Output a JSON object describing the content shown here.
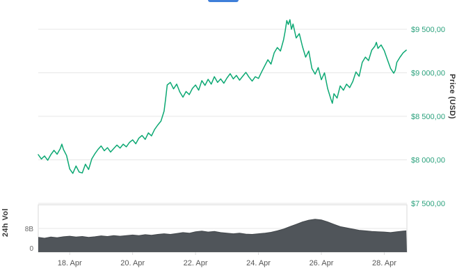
{
  "colors": {
    "price_line": "#0ca873",
    "price_tick_label": "#2aa17c",
    "volume_fill": "#50555a",
    "volume_edge": "#43484c",
    "grid_line": "#e7e7e7",
    "panel_border": "#d9d9d9",
    "axis_text": "#555555",
    "volume_tick_text": "#666666",
    "axis_title": "#333333",
    "cropped_blue": "#3f7fd9"
  },
  "chart_data": [
    {
      "type": "line",
      "name": "price",
      "title": "",
      "xlabel": "",
      "ylabel": "Price (USD)",
      "legend": "none",
      "grid": true,
      "xlim": [
        17.0,
        28.72
      ],
      "ylim": [
        7500,
        9756
      ],
      "x_ticks": [
        {
          "t": 18,
          "label": "18. Apr"
        },
        {
          "t": 20,
          "label": "20. Apr"
        },
        {
          "t": 22,
          "label": "22. Apr"
        },
        {
          "t": 24,
          "label": "24. Apr"
        },
        {
          "t": 26,
          "label": "26. Apr"
        },
        {
          "t": 28,
          "label": "28. Apr"
        }
      ],
      "y_ticks": [
        {
          "value": 9500,
          "label": "$9 500,00"
        },
        {
          "value": 9000,
          "label": "$9 000,00"
        },
        {
          "value": 8500,
          "label": "$8 500,00"
        },
        {
          "value": 8000,
          "label": "$8 000,00"
        },
        {
          "value": 7500,
          "label": "$7 500,00"
        }
      ],
      "series": [
        {
          "name": "Price (USD)",
          "points": [
            [
              17.0,
              8060
            ],
            [
              17.1,
              8010
            ],
            [
              17.2,
              8045
            ],
            [
              17.3,
              7995
            ],
            [
              17.4,
              8060
            ],
            [
              17.5,
              8110
            ],
            [
              17.6,
              8065
            ],
            [
              17.7,
              8130
            ],
            [
              17.75,
              8180
            ],
            [
              17.8,
              8120
            ],
            [
              17.9,
              8050
            ],
            [
              18.0,
              7895
            ],
            [
              18.1,
              7845
            ],
            [
              18.2,
              7930
            ],
            [
              18.3,
              7860
            ],
            [
              18.4,
              7850
            ],
            [
              18.5,
              7950
            ],
            [
              18.6,
              7890
            ],
            [
              18.7,
              8010
            ],
            [
              18.8,
              8070
            ],
            [
              18.9,
              8120
            ],
            [
              19.0,
              8160
            ],
            [
              19.1,
              8105
            ],
            [
              19.2,
              8140
            ],
            [
              19.3,
              8090
            ],
            [
              19.4,
              8130
            ],
            [
              19.5,
              8170
            ],
            [
              19.6,
              8135
            ],
            [
              19.7,
              8180
            ],
            [
              19.8,
              8150
            ],
            [
              19.9,
              8200
            ],
            [
              20.0,
              8230
            ],
            [
              20.1,
              8185
            ],
            [
              20.2,
              8250
            ],
            [
              20.3,
              8280
            ],
            [
              20.4,
              8235
            ],
            [
              20.5,
              8310
            ],
            [
              20.6,
              8275
            ],
            [
              20.7,
              8350
            ],
            [
              20.8,
              8400
            ],
            [
              20.9,
              8445
            ],
            [
              21.0,
              8560
            ],
            [
              21.05,
              8700
            ],
            [
              21.1,
              8860
            ],
            [
              21.2,
              8890
            ],
            [
              21.3,
              8815
            ],
            [
              21.4,
              8870
            ],
            [
              21.5,
              8780
            ],
            [
              21.6,
              8720
            ],
            [
              21.7,
              8785
            ],
            [
              21.8,
              8750
            ],
            [
              21.9,
              8820
            ],
            [
              22.0,
              8860
            ],
            [
              22.1,
              8800
            ],
            [
              22.2,
              8910
            ],
            [
              22.3,
              8855
            ],
            [
              22.4,
              8925
            ],
            [
              22.5,
              8870
            ],
            [
              22.6,
              8955
            ],
            [
              22.7,
              8890
            ],
            [
              22.8,
              8930
            ],
            [
              22.9,
              8880
            ],
            [
              23.0,
              8940
            ],
            [
              23.1,
              8990
            ],
            [
              23.2,
              8930
            ],
            [
              23.3,
              8970
            ],
            [
              23.4,
              8915
            ],
            [
              23.5,
              8960
            ],
            [
              23.6,
              9005
            ],
            [
              23.7,
              8950
            ],
            [
              23.8,
              8905
            ],
            [
              23.9,
              8955
            ],
            [
              24.0,
              8935
            ],
            [
              24.1,
              9010
            ],
            [
              24.2,
              9080
            ],
            [
              24.3,
              9150
            ],
            [
              24.4,
              9100
            ],
            [
              24.5,
              9230
            ],
            [
              24.6,
              9290
            ],
            [
              24.7,
              9250
            ],
            [
              24.8,
              9380
            ],
            [
              24.85,
              9480
            ],
            [
              24.9,
              9600
            ],
            [
              24.95,
              9555
            ],
            [
              25.0,
              9610
            ],
            [
              25.05,
              9500
            ],
            [
              25.1,
              9560
            ],
            [
              25.2,
              9400
            ],
            [
              25.3,
              9450
            ],
            [
              25.4,
              9300
            ],
            [
              25.5,
              9180
            ],
            [
              25.6,
              9250
            ],
            [
              25.7,
              9050
            ],
            [
              25.8,
              8985
            ],
            [
              25.9,
              9060
            ],
            [
              26.0,
              8920
            ],
            [
              26.1,
              9000
            ],
            [
              26.2,
              8820
            ],
            [
              26.3,
              8700
            ],
            [
              26.35,
              8650
            ],
            [
              26.4,
              8760
            ],
            [
              26.5,
              8710
            ],
            [
              26.6,
              8850
            ],
            [
              26.7,
              8800
            ],
            [
              26.8,
              8870
            ],
            [
              26.9,
              8830
            ],
            [
              27.0,
              8900
            ],
            [
              27.1,
              9010
            ],
            [
              27.2,
              8960
            ],
            [
              27.3,
              9120
            ],
            [
              27.4,
              9180
            ],
            [
              27.5,
              9140
            ],
            [
              27.6,
              9260
            ],
            [
              27.7,
              9305
            ],
            [
              27.75,
              9350
            ],
            [
              27.8,
              9280
            ],
            [
              27.9,
              9320
            ],
            [
              28.0,
              9255
            ],
            [
              28.1,
              9150
            ],
            [
              28.2,
              9050
            ],
            [
              28.3,
              8995
            ],
            [
              28.35,
              9030
            ],
            [
              28.4,
              9120
            ],
            [
              28.5,
              9180
            ],
            [
              28.6,
              9230
            ],
            [
              28.7,
              9260
            ]
          ]
        }
      ]
    },
    {
      "type": "area",
      "name": "volume_24h",
      "title": "",
      "xlabel": "",
      "ylabel": "24h Vol",
      "legend": "none",
      "grid": true,
      "xlim": [
        17.0,
        28.72
      ],
      "ylim": [
        0,
        16
      ],
      "unit": "billions USD",
      "y_ticks": [
        {
          "value": 8,
          "label": "8B"
        },
        {
          "value": 0,
          "label": "0"
        }
      ],
      "series": [
        {
          "name": "24h Vol",
          "points": [
            [
              17.0,
              5.0
            ],
            [
              17.2,
              4.7
            ],
            [
              17.4,
              5.1
            ],
            [
              17.6,
              4.9
            ],
            [
              17.8,
              5.2
            ],
            [
              18.0,
              5.4
            ],
            [
              18.2,
              5.1
            ],
            [
              18.4,
              5.3
            ],
            [
              18.6,
              5.0
            ],
            [
              18.8,
              5.2
            ],
            [
              19.0,
              5.5
            ],
            [
              19.2,
              5.3
            ],
            [
              19.4,
              5.6
            ],
            [
              19.6,
              5.4
            ],
            [
              19.8,
              5.6
            ],
            [
              20.0,
              5.8
            ],
            [
              20.2,
              5.6
            ],
            [
              20.4,
              5.9
            ],
            [
              20.6,
              5.7
            ],
            [
              20.8,
              6.0
            ],
            [
              21.0,
              6.2
            ],
            [
              21.2,
              6.0
            ],
            [
              21.4,
              6.3
            ],
            [
              21.6,
              6.6
            ],
            [
              21.8,
              6.4
            ],
            [
              22.0,
              6.9
            ],
            [
              22.2,
              7.1
            ],
            [
              22.4,
              6.8
            ],
            [
              22.6,
              7.0
            ],
            [
              22.8,
              6.6
            ],
            [
              23.0,
              6.4
            ],
            [
              23.2,
              6.2
            ],
            [
              23.4,
              6.4
            ],
            [
              23.6,
              6.1
            ],
            [
              23.8,
              6.0
            ],
            [
              24.0,
              6.2
            ],
            [
              24.2,
              6.4
            ],
            [
              24.4,
              6.7
            ],
            [
              24.6,
              7.2
            ],
            [
              24.8,
              7.8
            ],
            [
              25.0,
              8.6
            ],
            [
              25.2,
              9.4
            ],
            [
              25.4,
              10.2
            ],
            [
              25.6,
              10.8
            ],
            [
              25.8,
              11.1
            ],
            [
              26.0,
              10.9
            ],
            [
              26.2,
              10.2
            ],
            [
              26.4,
              9.4
            ],
            [
              26.6,
              8.6
            ],
            [
              26.8,
              8.2
            ],
            [
              27.0,
              7.8
            ],
            [
              27.2,
              7.4
            ],
            [
              27.4,
              7.2
            ],
            [
              27.6,
              7.0
            ],
            [
              27.8,
              6.9
            ],
            [
              28.0,
              6.8
            ],
            [
              28.2,
              6.6
            ],
            [
              28.4,
              6.9
            ],
            [
              28.6,
              7.1
            ],
            [
              28.7,
              7.2
            ]
          ]
        }
      ]
    }
  ]
}
